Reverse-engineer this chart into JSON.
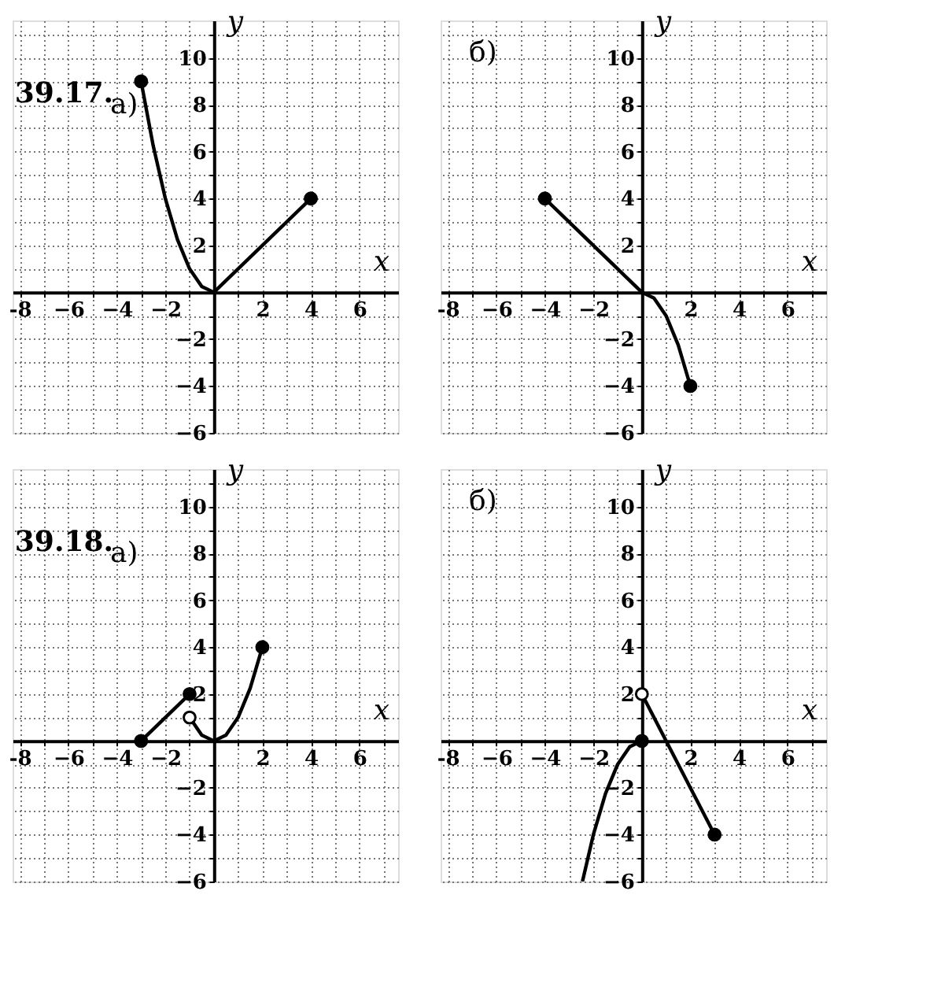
{
  "chart_data": [
    {
      "type": "line",
      "title": "39.17.",
      "annotations": [
        "а)"
      ],
      "xlabel": "x",
      "ylabel": "y",
      "xlim": [
        -8.3,
        7.6
      ],
      "ylim": [
        -6,
        11.6
      ],
      "grid": true,
      "xticks": [
        {
          "value": -8,
          "label": "-8"
        },
        {
          "value": -7,
          "label": null
        },
        {
          "value": -6,
          "label": "−6"
        },
        {
          "value": -5,
          "label": null
        },
        {
          "value": -4,
          "label": "−4"
        },
        {
          "value": -3,
          "label": null
        },
        {
          "value": -2,
          "label": "−2"
        },
        {
          "value": -1,
          "label": null
        },
        {
          "value": 0,
          "label": null
        },
        {
          "value": 1,
          "label": null
        },
        2,
        {
          "value": 3,
          "label": null
        },
        4,
        {
          "value": 5,
          "label": null
        },
        6,
        {
          "value": 7,
          "label": null
        }
      ],
      "yticks": [
        {
          "value": -6,
          "label": "−6"
        },
        {
          "value": -5,
          "label": null
        },
        {
          "value": -4,
          "label": "−4"
        },
        {
          "value": -3,
          "label": null
        },
        {
          "value": -2,
          "label": "−2"
        },
        {
          "value": -1,
          "label": null
        },
        {
          "value": 0,
          "label": null
        },
        {
          "value": 1,
          "label": null
        },
        2,
        {
          "value": 3,
          "label": null
        },
        4,
        {
          "value": 5,
          "label": null
        },
        6,
        {
          "value": 7,
          "label": null
        },
        8,
        {
          "value": 9,
          "label": null
        },
        10,
        {
          "value": 11,
          "label": null
        }
      ],
      "series": [
        {
          "color": "#000000",
          "x": [
            -3,
            -2.5,
            -2,
            -1.5,
            -1,
            -0.5,
            0
          ],
          "values": [
            9,
            6.25,
            4,
            2.25,
            1,
            0.25,
            0
          ]
        },
        {
          "color": "#000000",
          "x": [
            0,
            4
          ],
          "values": [
            0,
            4
          ]
        },
        {
          "type": "scatter",
          "marker": "circle",
          "color": "#000000",
          "x": [
            -3,
            4
          ],
          "values": [
            9,
            4
          ]
        }
      ]
    },
    {
      "type": "line",
      "annotations": [
        "б)"
      ],
      "xlabel": "x",
      "ylabel": "y",
      "xlim": [
        -8.3,
        7.6
      ],
      "ylim": [
        -6,
        11.6
      ],
      "grid": true,
      "xticks": [
        {
          "value": -8,
          "label": "-8"
        },
        {
          "value": -7,
          "label": null
        },
        {
          "value": -6,
          "label": "−6"
        },
        {
          "value": -5,
          "label": null
        },
        {
          "value": -4,
          "label": "−4"
        },
        {
          "value": -3,
          "label": null
        },
        {
          "value": -2,
          "label": "−2"
        },
        {
          "value": -1,
          "label": null
        },
        {
          "value": 0,
          "label": null
        },
        {
          "value": 1,
          "label": null
        },
        2,
        {
          "value": 3,
          "label": null
        },
        4,
        {
          "value": 5,
          "label": null
        },
        6,
        {
          "value": 7,
          "label": null
        }
      ],
      "yticks": [
        {
          "value": -6,
          "label": "−6"
        },
        {
          "value": -5,
          "label": null
        },
        {
          "value": -4,
          "label": "−4"
        },
        {
          "value": -3,
          "label": null
        },
        {
          "value": -2,
          "label": "−2"
        },
        {
          "value": -1,
          "label": null
        },
        {
          "value": 0,
          "label": null
        },
        {
          "value": 1,
          "label": null
        },
        2,
        {
          "value": 3,
          "label": null
        },
        4,
        {
          "value": 5,
          "label": null
        },
        6,
        {
          "value": 7,
          "label": null
        },
        8,
        {
          "value": 9,
          "label": null
        },
        10,
        {
          "value": 11,
          "label": null
        }
      ],
      "series": [
        {
          "color": "#000000",
          "x": [
            -4,
            0,
            0.5,
            1,
            1.5,
            2
          ],
          "values": [
            4,
            0,
            -0.25,
            -1,
            -2.25,
            -4
          ]
        },
        {
          "type": "scatter",
          "marker": "circle",
          "color": "#000000",
          "x": [
            -4,
            2
          ],
          "values": [
            4,
            -4
          ]
        }
      ]
    },
    {
      "type": "line",
      "title": "39.18.",
      "annotations": [
        "а)"
      ],
      "xlabel": "x",
      "ylabel": "y",
      "xlim": [
        -8.3,
        7.6
      ],
      "ylim": [
        -6,
        11.6
      ],
      "grid": true,
      "xticks": [
        {
          "value": -8,
          "label": "-8"
        },
        {
          "value": -7,
          "label": null
        },
        {
          "value": -6,
          "label": "−6"
        },
        {
          "value": -5,
          "label": null
        },
        {
          "value": -4,
          "label": "−4"
        },
        {
          "value": -3,
          "label": null
        },
        {
          "value": -2,
          "label": "−2"
        },
        {
          "value": -1,
          "label": null
        },
        {
          "value": 0,
          "label": null
        },
        {
          "value": 1,
          "label": null
        },
        2,
        {
          "value": 3,
          "label": null
        },
        4,
        {
          "value": 5,
          "label": null
        },
        6,
        {
          "value": 7,
          "label": null
        }
      ],
      "yticks": [
        {
          "value": -6,
          "label": "−6"
        },
        {
          "value": -5,
          "label": null
        },
        {
          "value": -4,
          "label": "−4"
        },
        {
          "value": -3,
          "label": null
        },
        {
          "value": -2,
          "label": "−2"
        },
        {
          "value": -1,
          "label": null
        },
        {
          "value": 0,
          "label": null
        },
        {
          "value": 1,
          "label": null
        },
        2,
        {
          "value": 3,
          "label": null
        },
        4,
        {
          "value": 5,
          "label": null
        },
        6,
        {
          "value": 7,
          "label": null
        },
        8,
        {
          "value": 9,
          "label": null
        },
        10,
        {
          "value": 11,
          "label": null
        }
      ],
      "series": [
        {
          "color": "#000000",
          "x": [
            -3,
            -1
          ],
          "values": [
            0,
            2
          ]
        },
        {
          "color": "#000000",
          "x": [
            -1,
            -0.5,
            0,
            0.5,
            1,
            1.5,
            2
          ],
          "values": [
            1,
            0.25,
            0,
            0.25,
            1,
            2.25,
            4
          ]
        },
        {
          "type": "scatter",
          "marker": "circle",
          "color": "#000000",
          "x": [
            -3,
            -1,
            2
          ],
          "values": [
            0,
            2,
            4
          ]
        },
        {
          "type": "scatter",
          "marker": "circle",
          "color": "#ffffff",
          "x": [
            -1
          ],
          "values": [
            1
          ]
        }
      ]
    },
    {
      "type": "line",
      "annotations": [
        "б)"
      ],
      "xlabel": "x",
      "ylabel": "y",
      "xlim": [
        -8.3,
        7.6
      ],
      "ylim": [
        -6,
        11.6
      ],
      "grid": true,
      "xticks": [
        {
          "value": -8,
          "label": "-8"
        },
        {
          "value": -7,
          "label": null
        },
        {
          "value": -6,
          "label": "−6"
        },
        {
          "value": -5,
          "label": null
        },
        {
          "value": -4,
          "label": "−4"
        },
        {
          "value": -3,
          "label": null
        },
        {
          "value": -2,
          "label": "−2"
        },
        {
          "value": -1,
          "label": null
        },
        {
          "value": 0,
          "label": null
        },
        {
          "value": 1,
          "label": null
        },
        2,
        {
          "value": 3,
          "label": null
        },
        4,
        {
          "value": 5,
          "label": null
        },
        6,
        {
          "value": 7,
          "label": null
        }
      ],
      "yticks": [
        {
          "value": -6,
          "label": "−6"
        },
        {
          "value": -5,
          "label": null
        },
        {
          "value": -4,
          "label": "−4"
        },
        {
          "value": -3,
          "label": null
        },
        {
          "value": -2,
          "label": "−2"
        },
        {
          "value": -1,
          "label": null
        },
        {
          "value": 0,
          "label": null
        },
        {
          "value": 1,
          "label": null
        },
        2,
        {
          "value": 3,
          "label": null
        },
        4,
        {
          "value": 5,
          "label": null
        },
        6,
        {
          "value": 7,
          "label": null
        },
        8,
        {
          "value": 9,
          "label": null
        },
        10,
        {
          "value": 11,
          "label": null
        }
      ],
      "series": [
        {
          "color": "#000000",
          "x": [
            -2.45,
            -2,
            -1.5,
            -1,
            -0.5,
            0
          ],
          "values": [
            -6,
            -4,
            -2.25,
            -1,
            -0.25,
            0
          ]
        },
        {
          "color": "#000000",
          "x": [
            0,
            3
          ],
          "values": [
            2,
            -4
          ]
        },
        {
          "type": "scatter",
          "marker": "circle",
          "color": "#000000",
          "x": [
            0,
            3
          ],
          "values": [
            0,
            -4
          ]
        },
        {
          "type": "scatter",
          "marker": "circle",
          "color": "#ffffff",
          "x": [
            0
          ],
          "values": [
            2
          ]
        }
      ]
    }
  ]
}
